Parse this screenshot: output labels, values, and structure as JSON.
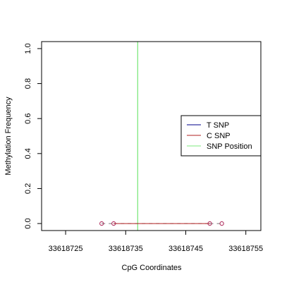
{
  "chart_data": {
    "type": "line",
    "xlabel": "CpG Coordinates",
    "ylabel": "Methylation Frequency",
    "xlim": [
      33618721,
      33618757.5
    ],
    "ylim": [
      -0.04,
      1.04
    ],
    "x_ticks": [
      33618725,
      33618735,
      33618745,
      33618755
    ],
    "x_tick_labels": [
      "33618725",
      "33618735",
      "33618745",
      "33618755"
    ],
    "y_ticks": [
      0,
      0.2,
      0.4,
      0.6,
      0.8,
      1.0
    ],
    "y_tick_labels": [
      "0.0",
      "0.2",
      "0.4",
      "0.6",
      "0.8",
      "1.0"
    ],
    "grid": false,
    "legend_position": "right",
    "legend": [
      {
        "label": "T SNP",
        "color": "#00008b",
        "kind": "line"
      },
      {
        "label": "C SNP",
        "color": "#b22222",
        "kind": "line"
      },
      {
        "label": "SNP Position",
        "color": "#7ee87e",
        "kind": "line"
      }
    ],
    "snp_position_x": 33618737,
    "series": [
      {
        "name": "T SNP",
        "color": "#00008b",
        "x": [
          33618731,
          33618733,
          33618749,
          33618751
        ],
        "y": [
          0,
          0,
          0,
          0
        ]
      },
      {
        "name": "C SNP",
        "color": "#b22222",
        "x": [
          33618731,
          33618733,
          33618749,
          33618751
        ],
        "y": [
          0,
          0,
          0,
          0
        ]
      }
    ],
    "c_snp_segment": [
      33618733,
      33618749
    ],
    "point_color": "#b03060"
  }
}
